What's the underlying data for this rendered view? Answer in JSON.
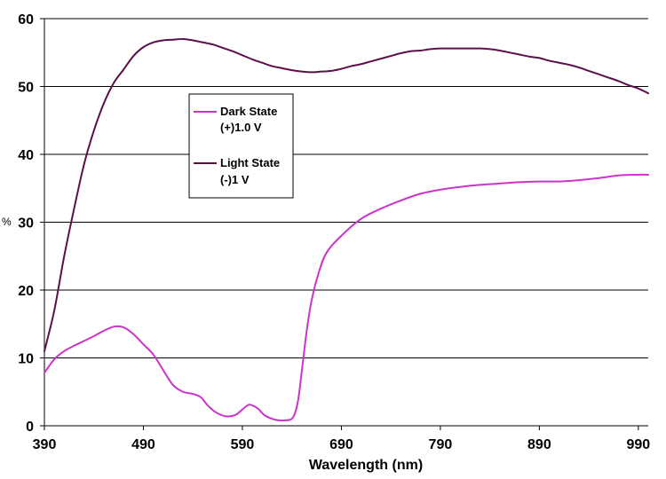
{
  "chart_data": {
    "type": "line",
    "title": "",
    "xlabel": "Wavelength (nm)",
    "ylabel": "%",
    "xlim": [
      390,
      1000
    ],
    "ylim": [
      0,
      60
    ],
    "x_ticks": [
      "390",
      "490",
      "590",
      "690",
      "790",
      "890",
      "990"
    ],
    "y_ticks": [
      "0",
      "10",
      "20",
      "30",
      "40",
      "50",
      "60"
    ],
    "grid": "horizontal",
    "legend_position": "upper-left-inside",
    "series": [
      {
        "name": [
          "Dark State",
          "(+)1.0 V"
        ],
        "color": "#cc33cc",
        "points": [
          [
            390,
            7.8
          ],
          [
            400,
            9.8
          ],
          [
            410,
            11.0
          ],
          [
            420,
            11.8
          ],
          [
            430,
            12.5
          ],
          [
            440,
            13.2
          ],
          [
            450,
            14.0
          ],
          [
            460,
            14.6
          ],
          [
            470,
            14.5
          ],
          [
            480,
            13.5
          ],
          [
            490,
            12.0
          ],
          [
            500,
            10.5
          ],
          [
            510,
            8.2
          ],
          [
            520,
            6.0
          ],
          [
            530,
            5.0
          ],
          [
            540,
            4.7
          ],
          [
            548,
            4.2
          ],
          [
            555,
            3.0
          ],
          [
            563,
            2.0
          ],
          [
            573,
            1.4
          ],
          [
            583,
            1.6
          ],
          [
            590,
            2.4
          ],
          [
            597,
            3.1
          ],
          [
            605,
            2.6
          ],
          [
            613,
            1.5
          ],
          [
            623,
            0.9
          ],
          [
            633,
            0.8
          ],
          [
            641,
            1.2
          ],
          [
            646,
            3.5
          ],
          [
            650,
            8.0
          ],
          [
            655,
            14.0
          ],
          [
            660,
            18.5
          ],
          [
            667,
            22.5
          ],
          [
            675,
            25.5
          ],
          [
            690,
            28.0
          ],
          [
            710,
            30.5
          ],
          [
            730,
            32.0
          ],
          [
            750,
            33.2
          ],
          [
            770,
            34.2
          ],
          [
            790,
            34.8
          ],
          [
            810,
            35.2
          ],
          [
            830,
            35.5
          ],
          [
            850,
            35.7
          ],
          [
            870,
            35.9
          ],
          [
            890,
            36.0
          ],
          [
            910,
            36.0
          ],
          [
            930,
            36.2
          ],
          [
            950,
            36.5
          ],
          [
            970,
            36.9
          ],
          [
            990,
            37.0
          ],
          [
            1000,
            37.0
          ]
        ]
      },
      {
        "name": [
          "Light State",
          "(-)1 V"
        ],
        "color": "#5c0f4a",
        "points": [
          [
            390,
            11.0
          ],
          [
            400,
            17.0
          ],
          [
            410,
            25.0
          ],
          [
            420,
            32.0
          ],
          [
            430,
            38.5
          ],
          [
            440,
            43.5
          ],
          [
            450,
            47.5
          ],
          [
            460,
            50.5
          ],
          [
            470,
            52.5
          ],
          [
            480,
            54.5
          ],
          [
            490,
            55.8
          ],
          [
            500,
            56.5
          ],
          [
            510,
            56.8
          ],
          [
            520,
            56.9
          ],
          [
            530,
            57.0
          ],
          [
            540,
            56.8
          ],
          [
            550,
            56.5
          ],
          [
            560,
            56.2
          ],
          [
            570,
            55.7
          ],
          [
            580,
            55.2
          ],
          [
            590,
            54.6
          ],
          [
            600,
            54.0
          ],
          [
            610,
            53.5
          ],
          [
            620,
            53.0
          ],
          [
            630,
            52.7
          ],
          [
            640,
            52.4
          ],
          [
            650,
            52.2
          ],
          [
            660,
            52.1
          ],
          [
            670,
            52.2
          ],
          [
            680,
            52.3
          ],
          [
            690,
            52.6
          ],
          [
            700,
            53.0
          ],
          [
            710,
            53.3
          ],
          [
            720,
            53.7
          ],
          [
            730,
            54.1
          ],
          [
            740,
            54.5
          ],
          [
            750,
            54.9
          ],
          [
            760,
            55.2
          ],
          [
            770,
            55.3
          ],
          [
            780,
            55.5
          ],
          [
            790,
            55.6
          ],
          [
            800,
            55.6
          ],
          [
            810,
            55.6
          ],
          [
            820,
            55.6
          ],
          [
            830,
            55.6
          ],
          [
            840,
            55.5
          ],
          [
            850,
            55.3
          ],
          [
            860,
            55.0
          ],
          [
            870,
            54.7
          ],
          [
            880,
            54.4
          ],
          [
            890,
            54.2
          ],
          [
            900,
            53.8
          ],
          [
            910,
            53.5
          ],
          [
            920,
            53.2
          ],
          [
            930,
            52.8
          ],
          [
            940,
            52.3
          ],
          [
            950,
            51.8
          ],
          [
            960,
            51.3
          ],
          [
            970,
            50.8
          ],
          [
            980,
            50.2
          ],
          [
            990,
            49.7
          ],
          [
            1000,
            49.0
          ]
        ]
      }
    ]
  }
}
